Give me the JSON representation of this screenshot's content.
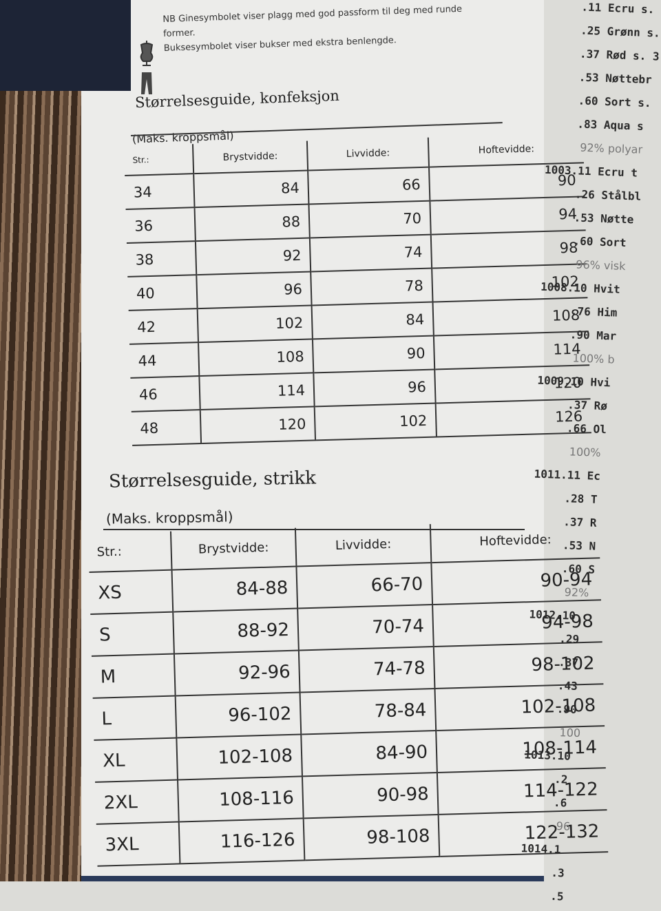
{
  "notes": [
    "NB Ginesymbolet viser plagg med god passform til deg med runde former.",
    "Buksesymbolet viser bukser med ekstra benlengde."
  ],
  "tables": [
    {
      "title": "Størrelsesguide, konfeksjon",
      "subtitle": "(Maks. kroppsmål)",
      "headers": [
        "Str.:",
        "Brystvidde:",
        "Livvidde:",
        "Hoftevidde:"
      ],
      "rows": [
        [
          34,
          84,
          66,
          90
        ],
        [
          36,
          88,
          70,
          94
        ],
        [
          38,
          92,
          74,
          98
        ],
        [
          40,
          96,
          78,
          102
        ],
        [
          42,
          102,
          84,
          108
        ],
        [
          44,
          108,
          90,
          114
        ],
        [
          46,
          114,
          96,
          120
        ],
        [
          48,
          120,
          102,
          126
        ]
      ]
    },
    {
      "title": "Størrelsesguide, strikk",
      "subtitle": "(Maks. kroppsmål)",
      "headers": [
        "Str.:",
        "Brystvidde:",
        "Livvidde:",
        "Hoftevidde:"
      ],
      "rows": [
        [
          "XS",
          "84-88",
          "66-70",
          "90-94"
        ],
        [
          "S",
          "88-92",
          "70-74",
          "94-98"
        ],
        [
          "M",
          "92-96",
          "74-78",
          "98-102"
        ],
        [
          "L",
          "96-102",
          "78-84",
          "102-108"
        ],
        [
          "XL",
          "102-108",
          "84-90",
          "108-114"
        ],
        [
          "2XL",
          "108-116",
          "90-98",
          "114-122"
        ],
        [
          "3XL",
          "116-126",
          "98-108",
          "122-132"
        ]
      ]
    }
  ],
  "price_column": [
    ".11 Ecru s.",
    ".25 Grønn s.",
    ".37 Rød s. 3",
    ".53 Nøttebr",
    ".60 Sort s.",
    ".83 Aqua s",
    "92% polyar",
    "1003.11 Ecru t",
    ".26 Stålbl",
    ".53 Nøtte",
    ".60 Sort",
    "96% visk",
    "1008.10 Hvit",
    ".76 Him",
    ".90 Mar",
    "100% b",
    "1009.10 Hvi",
    ".37 Rø",
    ".66 Ol",
    "100%",
    "1011.11 Ec",
    ".28 T",
    ".37 R",
    ".53 N",
    ".60 S",
    "92%",
    "1012.10",
    ".29",
    ".37",
    ".43",
    ".90",
    "100",
    "1013.10",
    ".2",
    ".6",
    "96",
    "1014.1",
    ".3",
    ".5"
  ]
}
